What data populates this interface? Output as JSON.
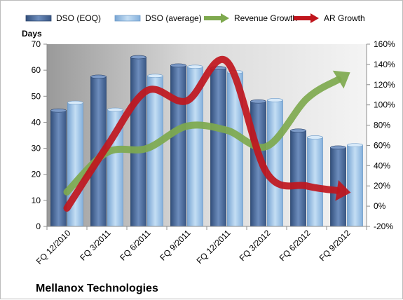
{
  "chart_data": {
    "type": "bar",
    "footer": "Mellanox Technologies",
    "y_left_title": "Days",
    "categories": [
      "FQ 12/2010",
      "FQ 3/2011",
      "FQ 6/2011",
      "FQ 9/2011",
      "FQ 12/2011",
      "FQ 3/2012",
      "FQ 6/2012",
      "FQ 9/2012"
    ],
    "y_left": {
      "min": 0,
      "max": 70,
      "step": 10,
      "ticks": [
        "0",
        "10",
        "20",
        "30",
        "40",
        "50",
        "60",
        "70"
      ]
    },
    "y_right": {
      "min": -20,
      "max": 160,
      "step": 20,
      "ticks": [
        "-20%",
        "0%",
        "20%",
        "40%",
        "60%",
        "80%",
        "100%",
        "120%",
        "140%",
        "160%"
      ]
    },
    "series": [
      {
        "name": "DSO (EOQ)",
        "axis": "left",
        "kind": "bar",
        "color": "#4f6d99",
        "values": [
          44.5,
          57.5,
          65,
          61.8,
          60.8,
          48,
          36.8,
          30.3
        ]
      },
      {
        "name": "DSO (average)",
        "axis": "left",
        "kind": "bar",
        "color": "#9ec3e6",
        "values": [
          47.5,
          44.8,
          57.8,
          61.3,
          59.3,
          48.5,
          34.2,
          31.2
        ]
      },
      {
        "name": "Revenue Growth",
        "axis": "right",
        "kind": "arrow-line",
        "color": "#7ea94e",
        "values": [
          14,
          53,
          57,
          79,
          75,
          59,
          106,
          130
        ]
      },
      {
        "name": "AR Growth",
        "axis": "right",
        "kind": "arrow-line",
        "color": "#c0161d",
        "values": [
          -2,
          59,
          114,
          104,
          143,
          33,
          20,
          14
        ]
      }
    ],
    "grid": false,
    "legend_position": "top"
  }
}
